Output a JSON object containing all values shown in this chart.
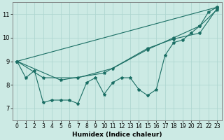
{
  "title": "",
  "xlabel": "Humidex (Indice chaleur)",
  "xlim": [
    -0.5,
    23.5
  ],
  "ylim": [
    6.5,
    11.5
  ],
  "xticks": [
    0,
    1,
    2,
    3,
    4,
    5,
    6,
    7,
    8,
    9,
    10,
    11,
    12,
    13,
    14,
    15,
    16,
    17,
    18,
    19,
    20,
    21,
    22,
    23
  ],
  "yticks": [
    7,
    8,
    9,
    10,
    11
  ],
  "background_color": "#cceae4",
  "grid_color": "#aad4ce",
  "line_color": "#1a6e64",
  "series1_x": [
    0,
    1,
    2,
    3,
    4,
    5,
    6,
    7,
    8,
    9,
    10,
    11,
    12,
    13,
    14,
    15,
    16,
    17,
    18,
    19,
    20,
    21,
    22,
    23
  ],
  "series1_y": [
    9.0,
    8.3,
    8.6,
    7.25,
    7.35,
    7.35,
    7.35,
    7.2,
    8.1,
    8.3,
    7.6,
    8.1,
    8.3,
    8.3,
    7.8,
    7.55,
    7.8,
    9.25,
    9.8,
    9.9,
    10.2,
    10.5,
    11.1,
    11.3
  ],
  "series2_x": [
    0,
    23
  ],
  "series2_y": [
    9.0,
    11.3
  ],
  "series3_x": [
    0,
    3,
    7,
    11,
    15,
    18,
    21,
    23
  ],
  "series3_y": [
    9.0,
    8.3,
    8.3,
    8.7,
    9.5,
    10.0,
    10.5,
    11.2
  ],
  "series4_x": [
    0,
    5,
    10,
    15,
    18,
    21,
    23
  ],
  "series4_y": [
    9.0,
    8.2,
    8.5,
    9.55,
    9.95,
    10.2,
    11.25
  ],
  "marker": "*",
  "marker_size": 3,
  "linewidth": 0.8,
  "tick_fontsize": 5.5,
  "xlabel_fontsize": 6.5,
  "figsize": [
    3.2,
    2.0
  ],
  "dpi": 100
}
